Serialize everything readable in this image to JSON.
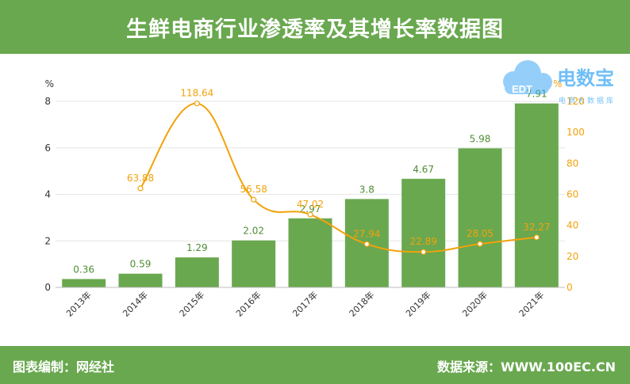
{
  "title": "生鲜电商行业渗透率及其增长率数据图",
  "footer": {
    "left": "图表编制：网经社",
    "right": "数据来源：WWW.100EC.CN"
  },
  "logo": {
    "text": "电数宝",
    "sub": "电商大数据库",
    "mark": "EDT"
  },
  "colors": {
    "bar": "#6aa84f",
    "line": "#f2a20a",
    "header": "#69a84f"
  },
  "chart_data": {
    "type": "bar+line",
    "categories": [
      "2013年",
      "2014年",
      "2015年",
      "2016年",
      "2017年",
      "2018年",
      "2019年",
      "2020年",
      "2021年"
    ],
    "series": [
      {
        "name": "",
        "type": "bar",
        "axis": "left",
        "values": [
          0.36,
          0.59,
          1.29,
          2.02,
          2.97,
          3.8,
          4.67,
          5.98,
          7.91
        ],
        "labels": [
          "0.36",
          "0.59",
          "1.29",
          "2.02",
          "2.97",
          "3.8",
          "4.67",
          "5.98",
          "7.91"
        ]
      },
      {
        "name": "",
        "type": "line",
        "axis": "right",
        "values": [
          null,
          63.88,
          118.64,
          56.58,
          47.02,
          27.94,
          22.89,
          28.05,
          32.27
        ],
        "labels": [
          "",
          "63.88",
          "118.64",
          "56.58",
          "47.02",
          "27.94",
          "22.89",
          "28.05",
          "32.27"
        ]
      }
    ],
    "y_left": {
      "unit": "%",
      "ylim": [
        0,
        8
      ],
      "ticks": [
        "0",
        "2",
        "4",
        "6",
        "8"
      ]
    },
    "y_right": {
      "unit": "%",
      "ylim": [
        0,
        120
      ],
      "ticks": [
        "0",
        "20",
        "40",
        "60",
        "80",
        "100",
        "120"
      ]
    },
    "grid": true,
    "legend": "none"
  }
}
